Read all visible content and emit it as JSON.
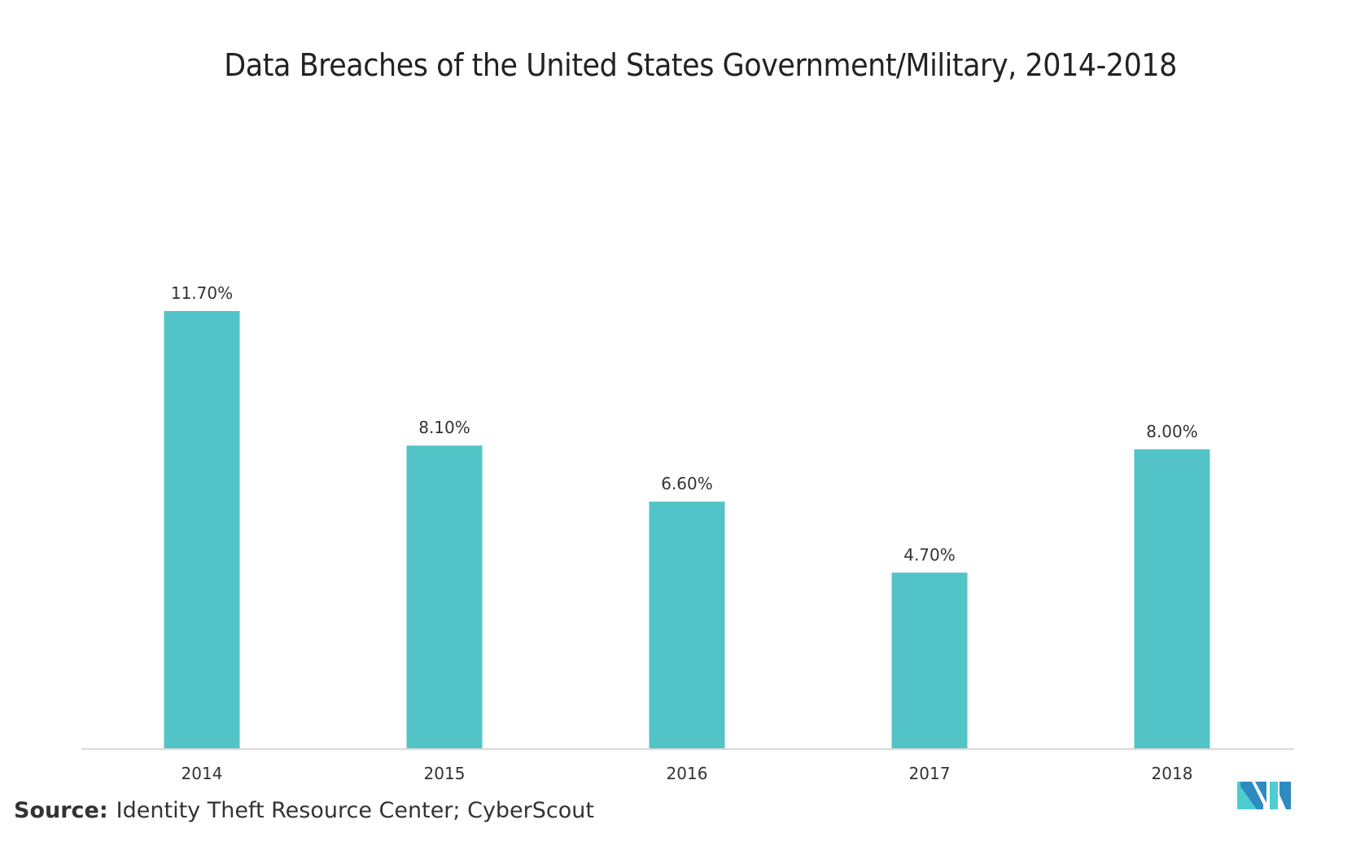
{
  "chart_data": {
    "type": "bar",
    "title": "Data Breaches of the United States Government/Military, 2014-2018",
    "xlabel": "",
    "ylabel": "",
    "categories": [
      "2014",
      "2015",
      "2016",
      "2017",
      "2018"
    ],
    "values": [
      11.7,
      8.1,
      6.6,
      4.7,
      8.0
    ],
    "data_labels": [
      "11.70%",
      "8.10%",
      "6.60%",
      "4.70%",
      "8.00%"
    ],
    "ylim": [
      0,
      12
    ],
    "grid": false,
    "legend": "none",
    "bar_color": "#52c4c7",
    "axis_color": "#d9d9d9"
  },
  "source": {
    "label": "Source:",
    "text": "Identity Theft Resource Center; CyberScout"
  },
  "logo": {
    "icon": "mordor-intelligence-logo-icon",
    "colors": [
      "#2e8bc0",
      "#4ecdd1"
    ]
  }
}
